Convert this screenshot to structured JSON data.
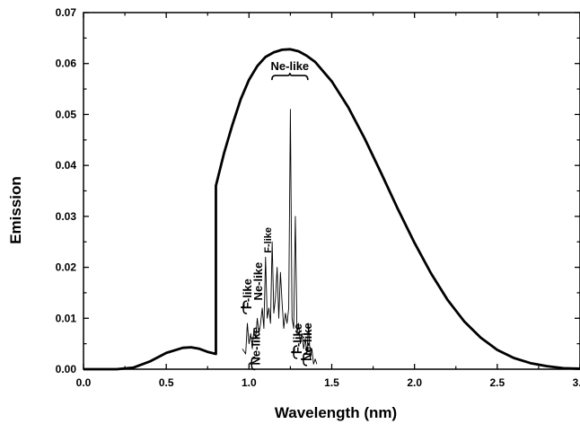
{
  "chart_data": {
    "type": "line",
    "title": "",
    "xlabel": "Wavelength (nm)",
    "ylabel": "Emission",
    "xlim": [
      0.0,
      3.0
    ],
    "ylim": [
      0.0,
      0.07
    ],
    "x_ticks": [
      "0.0",
      "0.5",
      "1.0",
      "1.5",
      "2.0",
      "2.5",
      "3.0"
    ],
    "y_ticks": [
      "0.00",
      "0.01",
      "0.02",
      "0.03",
      "0.04",
      "0.05",
      "0.06",
      "0.07"
    ],
    "grid": false,
    "series": [
      {
        "x": [
          0.0,
          0.2,
          0.3,
          0.4,
          0.5,
          0.6,
          0.65,
          0.7,
          0.75,
          0.8,
          0.8,
          0.85,
          0.9,
          0.95,
          1.0,
          1.05,
          1.1,
          1.15,
          1.2,
          1.25,
          1.3,
          1.35,
          1.4,
          1.5,
          1.6,
          1.7,
          1.8,
          1.9,
          2.0,
          2.1,
          2.2,
          2.3,
          2.4,
          2.5,
          2.6,
          2.7,
          2.8,
          2.9,
          3.0
        ],
        "y": [
          0.0,
          0.0,
          0.0003,
          0.0015,
          0.0032,
          0.0042,
          0.0043,
          0.004,
          0.0034,
          0.003,
          0.036,
          0.0425,
          0.048,
          0.053,
          0.0568,
          0.0595,
          0.0613,
          0.0622,
          0.0627,
          0.0628,
          0.0624,
          0.0615,
          0.0603,
          0.0565,
          0.0514,
          0.0452,
          0.0384,
          0.0314,
          0.0248,
          0.0188,
          0.0136,
          0.0094,
          0.0062,
          0.0038,
          0.0022,
          0.0012,
          0.0006,
          0.0002,
          0.0001
        ]
      },
      {
        "x": [
          0.96,
          0.98,
          0.99,
          1.0,
          1.01,
          1.02,
          1.03,
          1.04,
          1.05,
          1.06,
          1.07,
          1.08,
          1.09,
          1.1,
          1.11,
          1.12,
          1.13,
          1.14,
          1.15,
          1.16,
          1.17,
          1.18,
          1.19,
          1.2,
          1.21,
          1.22,
          1.23,
          1.24,
          1.25,
          1.26,
          1.27,
          1.28,
          1.29,
          1.3,
          1.31,
          1.32,
          1.33,
          1.34,
          1.35,
          1.36,
          1.37,
          1.38,
          1.39,
          1.4,
          1.41
        ],
        "y": [
          0.004,
          0.003,
          0.009,
          0.005,
          0.007,
          0.004,
          0.008,
          0.006,
          0.01,
          0.007,
          0.009,
          0.012,
          0.008,
          0.022,
          0.01,
          0.012,
          0.009,
          0.025,
          0.011,
          0.014,
          0.02,
          0.01,
          0.019,
          0.013,
          0.008,
          0.011,
          0.009,
          0.012,
          0.051,
          0.01,
          0.008,
          0.03,
          0.007,
          0.009,
          0.005,
          0.007,
          0.004,
          0.006,
          0.003,
          0.009,
          0.002,
          0.004,
          0.001,
          0.002,
          0.001
        ]
      }
    ],
    "annotations": [
      {
        "text": "Ne-like",
        "x": 1.065,
        "y": 0.0008
      },
      {
        "text": "F-like",
        "x": 1.015,
        "y": 0.0118
      },
      {
        "text": "Ne-like",
        "x": 1.08,
        "y": 0.0135
      },
      {
        "text": "F-like",
        "x": 1.135,
        "y": 0.0228
      },
      {
        "text": "Ne-like",
        "x": 1.247,
        "y": 0.0587
      },
      {
        "text": "F-like",
        "x": 1.319,
        "y": 0.003
      },
      {
        "text": "Ne-like",
        "x": 1.378,
        "y": 0.0016
      }
    ]
  }
}
